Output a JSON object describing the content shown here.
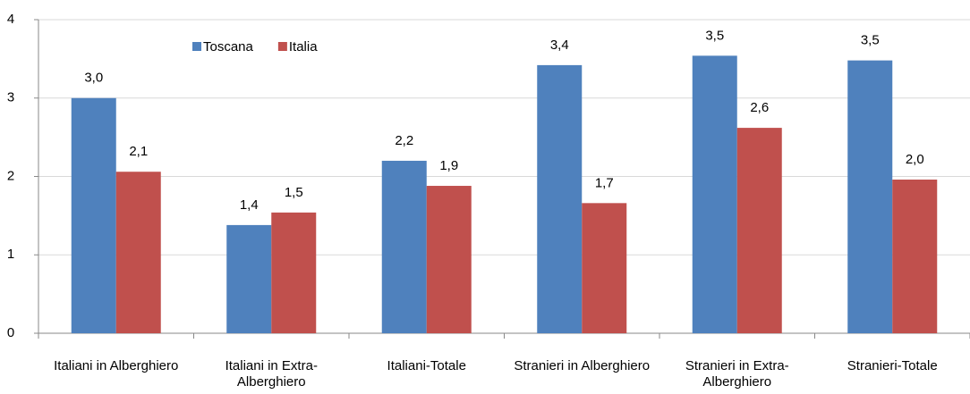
{
  "chart_data": {
    "type": "bar",
    "categories": [
      "Italiani in Alberghiero",
      "Italiani in Extra-Alberghiero",
      "Italiani-Totale",
      "Stranieri in Alberghiero",
      "Stranieri in Extra-Alberghiero",
      "Stranieri-Totale"
    ],
    "series": [
      {
        "name": "Toscana",
        "color": "#4f81bd",
        "values": [
          3.0,
          1.38,
          2.2,
          3.42,
          3.54,
          3.48
        ],
        "value_labels": [
          "3,0",
          "1,4",
          "2,2",
          "3,4",
          "3,5",
          "3,5"
        ]
      },
      {
        "name": "Italia",
        "color": "#c0504d",
        "values": [
          2.06,
          1.54,
          1.88,
          1.66,
          2.62,
          1.96
        ],
        "value_labels": [
          "2,1",
          "1,5",
          "1,9",
          "1,7",
          "2,6",
          "2,0"
        ]
      }
    ],
    "ylim": [
      0,
      4
    ],
    "yticks": [
      0,
      1,
      2,
      3,
      4
    ],
    "grid": true,
    "legend": "top-left"
  }
}
